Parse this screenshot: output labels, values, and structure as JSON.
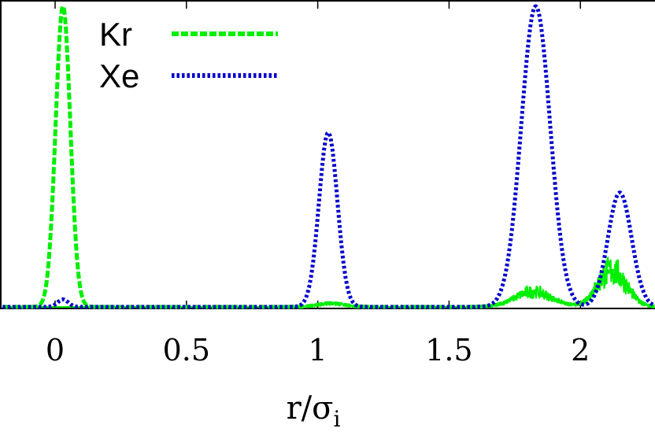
{
  "chart_data": {
    "type": "line",
    "title": "",
    "xlabel": "r/σ",
    "xlabel_subscript": "i",
    "ylabel": "",
    "xlim": [
      -0.2,
      2.3
    ],
    "ylim": [
      0,
      1.02
    ],
    "x_ticks": [
      0,
      0.5,
      1,
      1.5,
      2
    ],
    "x_tick_labels": [
      "0",
      "0.5",
      "1",
      "1.5",
      "2"
    ],
    "y_ticks_labeled": false,
    "grid": false,
    "legend_position": "top-left",
    "series": [
      {
        "name": "Kr",
        "color": "#00ee00",
        "style": "dashed",
        "peaks": [
          {
            "center": 0.03,
            "height": 1.0,
            "width": 0.028
          },
          {
            "center": 1.05,
            "height": 0.012,
            "width": 0.05
          },
          {
            "center": 1.82,
            "height": 0.05,
            "width": 0.07
          },
          {
            "center": 2.12,
            "height": 0.12,
            "width": 0.055
          }
        ]
      },
      {
        "name": "Xe",
        "color": "#0000cc",
        "style": "dotted",
        "peaks": [
          {
            "center": 0.03,
            "height": 0.025,
            "width": 0.02
          },
          {
            "center": 1.04,
            "height": 0.58,
            "width": 0.035
          },
          {
            "center": 1.83,
            "height": 1.0,
            "width": 0.055
          },
          {
            "center": 2.15,
            "height": 0.38,
            "width": 0.045
          }
        ]
      }
    ]
  }
}
